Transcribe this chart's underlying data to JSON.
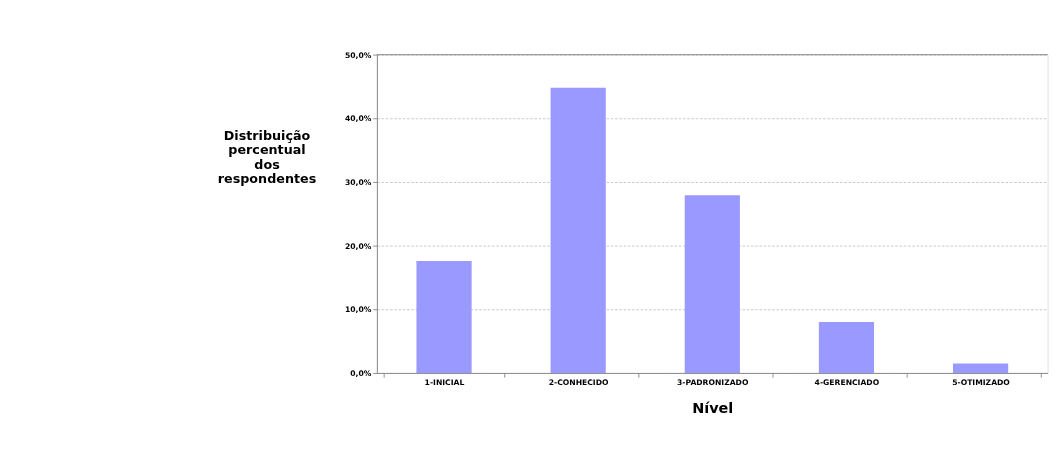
{
  "chart_data": {
    "type": "bar",
    "xlabel": "Nível",
    "ylabel": "Distribuição\npercentual\ndos\nrespondentes",
    "categories": [
      "1-INICIAL",
      "2-CONHECIDO",
      "3-PADRONIZADO",
      "4-GERENCIADO",
      "5-OTIMIZADO"
    ],
    "values": [
      17.6,
      44.8,
      27.9,
      8.0,
      1.5
    ],
    "color": "#9999ff",
    "ylim": [
      0,
      50
    ],
    "yticks": [
      {
        "value": 0,
        "label": "0,0%"
      },
      {
        "value": 10,
        "label": "10,0%"
      },
      {
        "value": 20,
        "label": "20,0%"
      },
      {
        "value": 30,
        "label": "30,0%"
      },
      {
        "value": 40,
        "label": "40,0%"
      },
      {
        "value": 50,
        "label": "50,0%"
      }
    ],
    "grid": "y"
  }
}
